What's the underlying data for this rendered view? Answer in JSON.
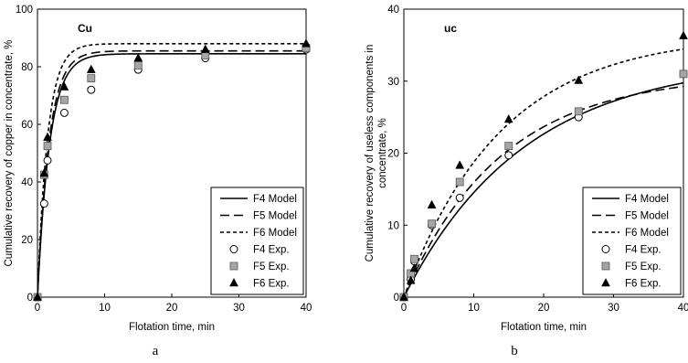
{
  "chart_data": [
    {
      "type": "line",
      "panel_title": "Cu",
      "sublabel": "a",
      "xlabel": "Flotation time, min",
      "ylabel_lines": [
        "Cumulative recovery of copper in concentrate, %"
      ],
      "xlim": [
        0,
        40
      ],
      "ylim": [
        0,
        100
      ],
      "xticks": [
        0,
        10,
        20,
        30,
        40
      ],
      "yticks": [
        0,
        20,
        40,
        60,
        80,
        100
      ],
      "grid": false,
      "legend_position": "lower-right",
      "models": [
        {
          "name": "F4 Model",
          "style": "solid",
          "rmax": 84.5,
          "k": 0.55
        },
        {
          "name": "F5 Model",
          "style": "long-dash",
          "rmax": 85.5,
          "k": 0.58
        },
        {
          "name": "F6 Model",
          "style": "short-dash",
          "rmax": 88.0,
          "k": 0.66
        }
      ],
      "experiments": [
        {
          "name": "F4 Exp.",
          "marker": "circle",
          "x": [
            0,
            1,
            1.5,
            4,
            8,
            15,
            25,
            40
          ],
          "y": [
            0,
            32.5,
            47.5,
            64,
            72,
            79,
            83,
            86
          ]
        },
        {
          "name": "F5 Exp.",
          "marker": "square",
          "x": [
            0,
            1,
            1.5,
            4,
            8,
            15,
            25,
            40
          ],
          "y": [
            0,
            42.5,
            52.5,
            68.5,
            76,
            80.5,
            84,
            86.5
          ]
        },
        {
          "name": "F6 Exp.",
          "marker": "triangle",
          "x": [
            0,
            1,
            1.5,
            4,
            8,
            15,
            25,
            40
          ],
          "y": [
            0,
            43,
            55.5,
            73,
            79,
            83,
            86,
            88
          ]
        }
      ]
    },
    {
      "type": "line",
      "panel_title": "uc",
      "sublabel": "b",
      "xlabel": "Flotation time, min",
      "ylabel_lines": [
        "Cumulative recovery of useless components in",
        "concentrate, %"
      ],
      "xlim": [
        0,
        40
      ],
      "ylim": [
        0,
        40
      ],
      "xticks": [
        0,
        10,
        20,
        30,
        40
      ],
      "yticks": [
        0,
        10,
        20,
        30,
        40
      ],
      "grid": false,
      "legend_position": "lower-right",
      "models": [
        {
          "name": "F4 Model",
          "style": "solid",
          "rmax": 33.0,
          "k": 0.058
        },
        {
          "name": "F5 Model",
          "style": "long-dash",
          "rmax": 31.0,
          "k": 0.072
        },
        {
          "name": "F6 Model",
          "style": "short-dash",
          "rmax": 36.5,
          "k": 0.072
        }
      ],
      "experiments": [
        {
          "name": "F4 Exp.",
          "marker": "circle",
          "x": [
            0,
            1,
            1.5,
            4,
            8,
            15,
            25,
            40
          ],
          "y": [
            0,
            2.5,
            5,
            10,
            13.8,
            19.7,
            25,
            31
          ]
        },
        {
          "name": "F5 Exp.",
          "marker": "square",
          "x": [
            0,
            1,
            1.5,
            4,
            8,
            15,
            25,
            40
          ],
          "y": [
            0,
            3.3,
            5.3,
            10.2,
            16,
            21,
            25.8,
            31
          ]
        },
        {
          "name": "F6 Exp.",
          "marker": "triangle",
          "x": [
            0,
            1,
            1.5,
            4,
            8,
            15,
            25,
            40
          ],
          "y": [
            0,
            2.3,
            4,
            12.8,
            18.3,
            24.7,
            30.1,
            36.3
          ]
        }
      ]
    }
  ]
}
